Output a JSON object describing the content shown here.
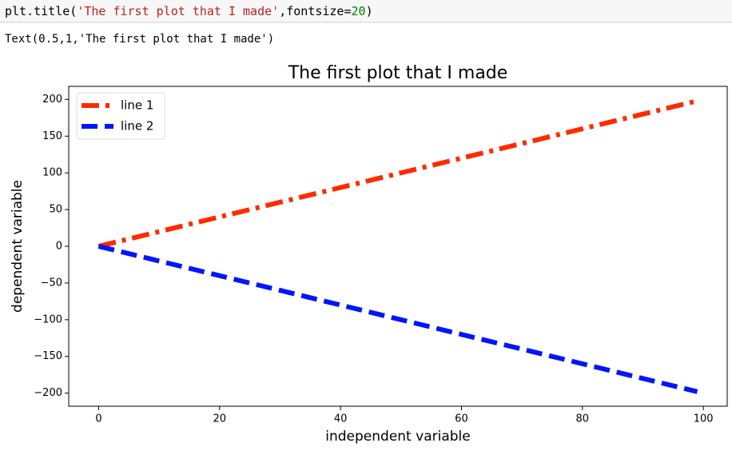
{
  "code": {
    "tokens": [
      {
        "text": "plt.title(",
        "color": "#000000"
      },
      {
        "text": "'The first plot that I made'",
        "color": "#ba2121"
      },
      {
        "text": ",fontsize=",
        "color": "#000000"
      },
      {
        "text": "20",
        "color": "#008000"
      },
      {
        "text": ")",
        "color": "#000000"
      }
    ]
  },
  "output_text": "Text(0.5,1,'The first plot that I made')",
  "chart_data": {
    "type": "line",
    "title": "The first plot that I made",
    "x_label": "independent variable",
    "y_label": "dependent variable",
    "x": [
      0,
      99
    ],
    "series": [
      {
        "name": "line 1",
        "color": "#ff2a00",
        "linestyle": "dashdot",
        "values": [
          0,
          198
        ]
      },
      {
        "name": "line 2",
        "color": "#0015ff",
        "linestyle": "dashed",
        "values": [
          0,
          -198
        ]
      }
    ],
    "xlim": [
      -4.95,
      103.95
    ],
    "ylim": [
      -217.8,
      217.8
    ],
    "xticks": [
      0,
      20,
      40,
      60,
      80,
      100
    ],
    "yticks": [
      {
        "value": -200,
        "label": "−200"
      },
      {
        "value": -150,
        "label": "−150"
      },
      {
        "value": -100,
        "label": "−100"
      },
      {
        "value": -50,
        "label": "−50"
      },
      0,
      50,
      100,
      150,
      200
    ],
    "legend": "upper left"
  }
}
